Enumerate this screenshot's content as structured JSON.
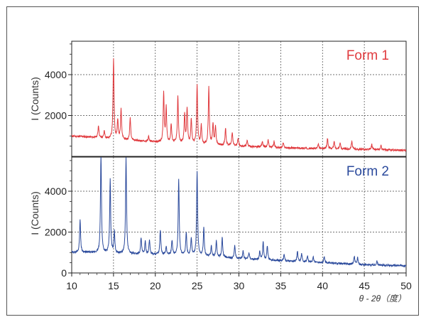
{
  "chart_data": [
    {
      "type": "line",
      "title": "Form 1",
      "ylabel": "I (Counts)",
      "xlim": [
        10,
        50
      ],
      "ylim": [
        0,
        6000
      ],
      "yticks": [
        2000,
        4000
      ],
      "grid": true,
      "color": "#e03a3e",
      "baseline": [
        [
          10,
          1000
        ],
        [
          12,
          950
        ],
        [
          15,
          850
        ],
        [
          20,
          700
        ],
        [
          25,
          600
        ],
        [
          30,
          500
        ],
        [
          35,
          420
        ],
        [
          40,
          380
        ],
        [
          45,
          340
        ],
        [
          50,
          300
        ]
      ],
      "peaks": [
        [
          13.2,
          600
        ],
        [
          13.9,
          350
        ],
        [
          15.0,
          3900
        ],
        [
          15.5,
          900
        ],
        [
          15.9,
          1500
        ],
        [
          17.0,
          1100
        ],
        [
          19.2,
          250
        ],
        [
          21.0,
          2400
        ],
        [
          21.3,
          1700
        ],
        [
          21.9,
          900
        ],
        [
          22.7,
          2300
        ],
        [
          23.5,
          1400
        ],
        [
          23.8,
          1700
        ],
        [
          24.3,
          1200
        ],
        [
          25.0,
          2900
        ],
        [
          25.5,
          900
        ],
        [
          26.4,
          2800
        ],
        [
          26.9,
          1000
        ],
        [
          27.2,
          900
        ],
        [
          28.4,
          850
        ],
        [
          29.2,
          650
        ],
        [
          29.9,
          400
        ],
        [
          31.0,
          300
        ],
        [
          32.8,
          300
        ],
        [
          33.5,
          350
        ],
        [
          34.2,
          300
        ],
        [
          35.3,
          250
        ],
        [
          39.5,
          200
        ],
        [
          40.6,
          500
        ],
        [
          41.4,
          350
        ],
        [
          42.1,
          300
        ],
        [
          43.5,
          400
        ],
        [
          45.9,
          250
        ],
        [
          47.0,
          200
        ]
      ]
    },
    {
      "type": "line",
      "title": "Form 2",
      "ylabel": "I (Counts)",
      "xlabel": "θ - 2θ（度）",
      "xlim": [
        10,
        50
      ],
      "ylim": [
        0,
        6000
      ],
      "xticks": [
        10,
        15,
        20,
        25,
        30,
        35,
        40,
        45,
        50
      ],
      "yticks": [
        0,
        2000,
        4000
      ],
      "grid": true,
      "color": "#2b4a9c",
      "baseline": [
        [
          10,
          1000
        ],
        [
          12,
          1000
        ],
        [
          15,
          950
        ],
        [
          20,
          900
        ],
        [
          25,
          850
        ],
        [
          30,
          700
        ],
        [
          35,
          600
        ],
        [
          40,
          500
        ],
        [
          45,
          400
        ],
        [
          50,
          350
        ]
      ],
      "peaks": [
        [
          11.0,
          1600
        ],
        [
          13.5,
          4800
        ],
        [
          14.6,
          3600
        ],
        [
          15.1,
          1100
        ],
        [
          16.5,
          4700
        ],
        [
          18.3,
          800
        ],
        [
          18.8,
          600
        ],
        [
          19.3,
          700
        ],
        [
          20.6,
          1200
        ],
        [
          21.3,
          400
        ],
        [
          22.0,
          700
        ],
        [
          22.8,
          3700
        ],
        [
          23.7,
          1100
        ],
        [
          24.3,
          800
        ],
        [
          25.0,
          4100
        ],
        [
          25.8,
          1400
        ],
        [
          26.7,
          500
        ],
        [
          27.3,
          800
        ],
        [
          28.0,
          1000
        ],
        [
          29.5,
          600
        ],
        [
          30.5,
          400
        ],
        [
          31.2,
          300
        ],
        [
          32.5,
          400
        ],
        [
          32.9,
          900
        ],
        [
          33.4,
          700
        ],
        [
          35.4,
          300
        ],
        [
          37.0,
          500
        ],
        [
          37.5,
          400
        ],
        [
          38.2,
          300
        ],
        [
          38.9,
          250
        ],
        [
          40.2,
          300
        ],
        [
          43.8,
          400
        ],
        [
          44.2,
          350
        ],
        [
          46.5,
          200
        ]
      ]
    }
  ]
}
